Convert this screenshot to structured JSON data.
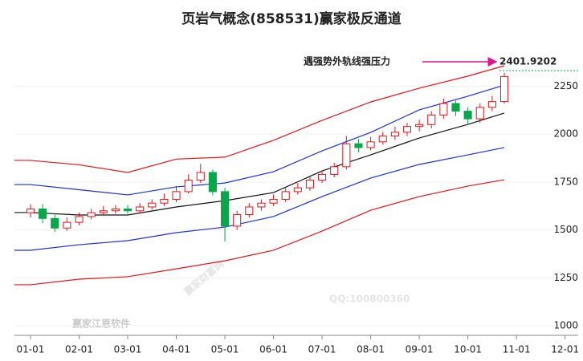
{
  "chart_data": {
    "type": "candlestick",
    "title": "页岩气概念(858531)赢家极反通道",
    "annotation": "遇强势外轨线强压力",
    "annotation_value": "2401.9202",
    "watermarks": [
      "赢家财富网",
      "QQ:100800360",
      "赢家江恩软件"
    ],
    "xlim": [
      -0.33,
      11.27
    ],
    "xticks": [
      {
        "value": 0,
        "label": "01-01"
      },
      {
        "value": 1,
        "label": "02-01"
      },
      {
        "value": 2,
        "label": "03-01"
      },
      {
        "value": 3,
        "label": "04-01"
      },
      {
        "value": 4,
        "label": "05-01"
      },
      {
        "value": 5,
        "label": "06-01"
      },
      {
        "value": 6,
        "label": "07-01"
      },
      {
        "value": 7,
        "label": "08-01"
      },
      {
        "value": 8,
        "label": "09-01"
      },
      {
        "value": 9,
        "label": "10-01"
      },
      {
        "value": 10,
        "label": "11-01"
      },
      {
        "value": 11,
        "label": "12-01"
      }
    ],
    "ylim": [
      950,
      2470
    ],
    "yticks": [
      1000,
      1250,
      1500,
      1750,
      2000,
      2250
    ],
    "up_color": "#e8141a",
    "down_color": "#0aa64a",
    "candles": {
      "x": [
        0,
        0.25,
        0.5,
        0.75,
        1,
        1.25,
        1.5,
        1.75,
        2,
        2.25,
        2.5,
        2.75,
        3,
        3.25,
        3.5,
        3.75,
        4,
        4.25,
        4.5,
        4.75,
        5,
        5.25,
        5.5,
        5.75,
        6,
        6.25,
        6.5,
        6.75,
        7,
        7.25,
        7.5,
        7.75,
        8,
        8.25,
        8.5,
        8.75,
        9,
        9.25,
        9.5,
        9.75
      ],
      "open": [
        1590,
        1610,
        1560,
        1510,
        1540,
        1570,
        1590,
        1600,
        1610,
        1600,
        1620,
        1640,
        1660,
        1700,
        1760,
        1800,
        1700,
        1520,
        1580,
        1620,
        1640,
        1660,
        1700,
        1720,
        1760,
        1790,
        1830,
        1950,
        1930,
        1960,
        1990,
        2010,
        2040,
        2050,
        2100,
        2160,
        2120,
        2080,
        2140,
        2170
      ],
      "high": [
        1635,
        1635,
        1585,
        1565,
        1590,
        1610,
        1625,
        1630,
        1630,
        1640,
        1660,
        1690,
        1730,
        1790,
        1845,
        1815,
        1720,
        1600,
        1640,
        1660,
        1685,
        1720,
        1745,
        1780,
        1810,
        1850,
        1990,
        1975,
        1985,
        2010,
        2040,
        2060,
        2075,
        2120,
        2185,
        2175,
        2140,
        2160,
        2200,
        2320
      ],
      "low": [
        1565,
        1535,
        1490,
        1495,
        1525,
        1555,
        1575,
        1585,
        1585,
        1585,
        1605,
        1625,
        1645,
        1690,
        1745,
        1680,
        1440,
        1500,
        1565,
        1600,
        1625,
        1645,
        1685,
        1705,
        1745,
        1775,
        1815,
        1905,
        1915,
        1945,
        1970,
        1990,
        2015,
        2030,
        2080,
        2095,
        2050,
        2060,
        2120,
        2160
      ],
      "close": [
        1610,
        1560,
        1510,
        1540,
        1570,
        1590,
        1600,
        1610,
        1600,
        1620,
        1640,
        1660,
        1700,
        1760,
        1800,
        1700,
        1520,
        1580,
        1620,
        1640,
        1660,
        1700,
        1720,
        1760,
        1790,
        1830,
        1950,
        1930,
        1960,
        1990,
        2010,
        2040,
        2050,
        2100,
        2160,
        2120,
        2080,
        2140,
        2170,
        2300
      ]
    },
    "line_x": [
      -0.33,
      0,
      1,
      2,
      3,
      4,
      5,
      6,
      7,
      8,
      9,
      9.75
    ],
    "series": [
      {
        "color": "#e8141a",
        "values": [
          1863,
          1863,
          1840,
          1800,
          1870,
          1880,
          1968,
          2072,
          2168,
          2240,
          2303,
          2357
        ]
      },
      {
        "color": "#1e2fd6",
        "values": [
          1737,
          1737,
          1710,
          1683,
          1725,
          1745,
          1804,
          1913,
          2009,
          2127,
          2198,
          2256
        ]
      },
      {
        "color": "#111111",
        "values": [
          1591,
          1591,
          1578,
          1578,
          1620,
          1653,
          1695,
          1808,
          1892,
          1980,
          2051,
          2110
        ]
      },
      {
        "color": "#1e2fd6",
        "values": [
          1394,
          1394,
          1423,
          1444,
          1486,
          1515,
          1570,
          1674,
          1771,
          1842,
          1892,
          1930
        ]
      },
      {
        "color": "#e8141a",
        "values": [
          1214,
          1214,
          1243,
          1256,
          1297,
          1339,
          1394,
          1494,
          1603,
          1674,
          1729,
          1762
        ]
      }
    ]
  }
}
